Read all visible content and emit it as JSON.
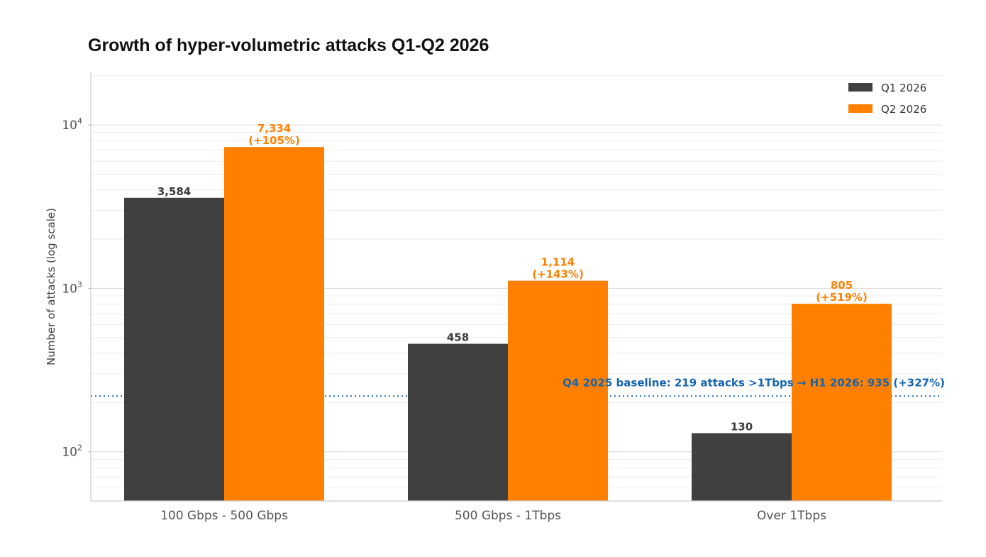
{
  "chart_data": {
    "type": "bar",
    "title": "Growth of hyper-volumetric attacks Q1-Q2 2026",
    "xlabel": "",
    "ylabel": "Number of attacks (log scale)",
    "yscale": "log",
    "ylim": [
      50,
      21000
    ],
    "yticks": [
      {
        "value": 100,
        "base": "10",
        "exp": "2"
      },
      {
        "value": 1000,
        "base": "10",
        "exp": "3"
      },
      {
        "value": 10000,
        "base": "10",
        "exp": "4"
      }
    ],
    "grid": true,
    "legend_position": "top-right",
    "categories": [
      "100 Gbps - 500 Gbps",
      "500 Gbps - 1Tbps",
      "Over 1Tbps"
    ],
    "series": [
      {
        "name": "Q1 2026",
        "color": "#404040",
        "values": [
          3584,
          458,
          130
        ],
        "labels": [
          [
            "3,584"
          ],
          [
            "458"
          ],
          [
            "130"
          ]
        ]
      },
      {
        "name": "Q2 2026",
        "color": "#ff7f00",
        "values": [
          7334,
          1114,
          805
        ],
        "labels": [
          [
            "7,334",
            "(+105%)"
          ],
          [
            "1,114",
            "(+143%)"
          ],
          [
            "805",
            "(+519%)"
          ]
        ]
      }
    ],
    "reference_line": {
      "value": 219,
      "style": "dotted",
      "color": "#1f6fb5",
      "label": "Q4 2025 baseline: 219 attacks >1Tbps → H1 2026: 935 (+327%)"
    }
  }
}
